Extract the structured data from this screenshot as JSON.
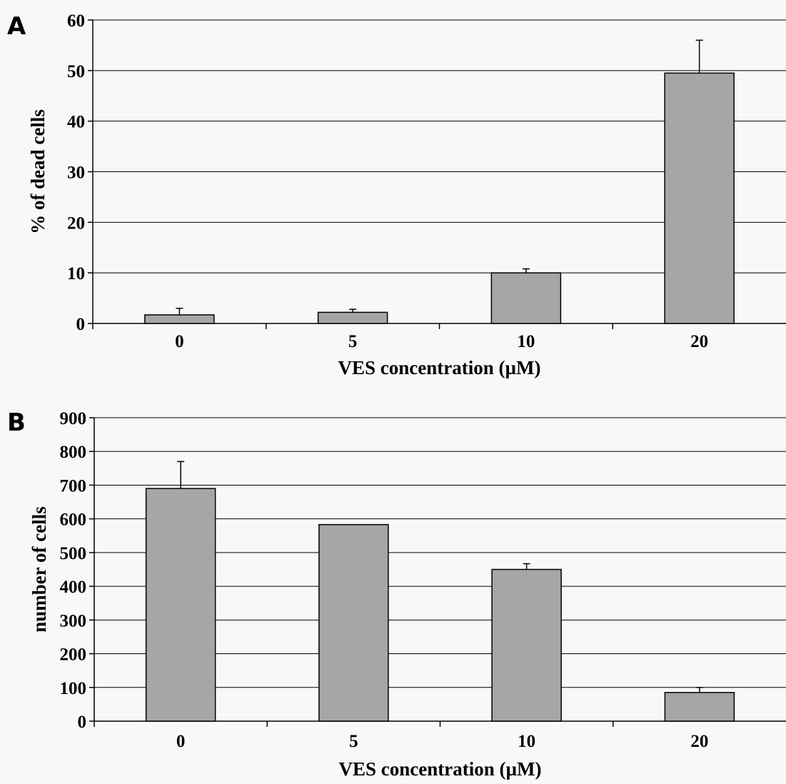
{
  "chart_data": [
    {
      "type": "bar",
      "panel_label": "A",
      "categories": [
        "0",
        "5",
        "10",
        "20"
      ],
      "values": [
        1.7,
        2.2,
        10,
        49.5
      ],
      "errors": [
        1.3,
        0.6,
        0.8,
        6.5
      ],
      "xlabel": "VES concentration (µM)",
      "ylabel": "% of dead cells",
      "ylim": [
        0,
        60
      ],
      "yticks": [
        0,
        10,
        20,
        30,
        40,
        50,
        60
      ],
      "grid": true,
      "bar_color": "#a6a6a6"
    },
    {
      "type": "bar",
      "panel_label": "B",
      "categories": [
        "0",
        "5",
        "10",
        "20"
      ],
      "values": [
        690,
        583,
        450,
        85
      ],
      "errors": [
        80,
        0,
        17,
        15
      ],
      "xlabel": "VES concentration (µM)",
      "ylabel": "number of cells",
      "ylim": [
        0,
        900
      ],
      "yticks": [
        0,
        100,
        200,
        300,
        400,
        500,
        600,
        700,
        800,
        900
      ],
      "grid": true,
      "bar_color": "#a6a6a6"
    }
  ]
}
